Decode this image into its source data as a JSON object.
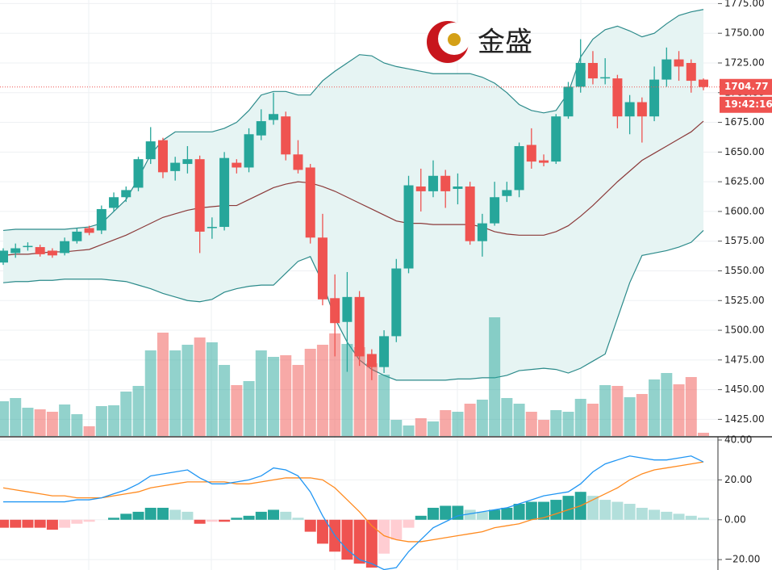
{
  "chart_data": {
    "type": "candlestick",
    "logo_text": "金盛",
    "time_label": "19:42:16",
    "colors": {
      "up": "#26a69a",
      "down": "#ef5350",
      "up_light": "#b2dfdb",
      "down_light": "#ffcdd2",
      "band_line": "#2b8a8a",
      "band_mid": "#8b3a3a",
      "band_fill": "#e6f4f3",
      "dif": "#2196f3",
      "dea": "#ff8a1f"
    },
    "open": [
      1557,
      1565,
      1570,
      1570,
      1567,
      1565,
      1575,
      1586,
      1584,
      1603,
      1612,
      1620,
      1644,
      1660,
      1634,
      1640,
      1644,
      1586,
      1587,
      1641,
      1637,
      1664,
      1677,
      1680,
      1648,
      1637,
      1578,
      1527,
      1507,
      1528,
      1480,
      1469,
      1495,
      1552,
      1621,
      1617,
      1630,
      1619,
      1621,
      1575,
      1590,
      1613,
      1618,
      1656,
      1643,
      1642,
      1680,
      1705,
      1725,
      1712,
      1712,
      1680,
      1692,
      1680,
      1711,
      1728,
      1725,
      1711
    ],
    "high": [
      1569,
      1573,
      1574,
      1572,
      1569,
      1578,
      1586,
      1588,
      1605,
      1616,
      1621,
      1646,
      1671,
      1662,
      1646,
      1655,
      1647,
      1595,
      1650,
      1644,
      1670,
      1686,
      1700,
      1684,
      1660,
      1640,
      1598,
      1547,
      1549,
      1533,
      1484,
      1500,
      1560,
      1630,
      1636,
      1643,
      1635,
      1632,
      1625,
      1598,
      1625,
      1625,
      1658,
      1670,
      1648,
      1682,
      1709,
      1745,
      1735,
      1729,
      1715,
      1698,
      1696,
      1722,
      1738,
      1735,
      1728,
      1712
    ],
    "low": [
      1555,
      1561,
      1567,
      1562,
      1561,
      1563,
      1573,
      1580,
      1581,
      1600,
      1608,
      1617,
      1640,
      1628,
      1626,
      1632,
      1565,
      1577,
      1584,
      1632,
      1633,
      1660,
      1673,
      1643,
      1632,
      1573,
      1521,
      1478,
      1465,
      1470,
      1458,
      1464,
      1490,
      1548,
      1600,
      1612,
      1603,
      1606,
      1572,
      1562,
      1588,
      1608,
      1612,
      1636,
      1638,
      1640,
      1678,
      1700,
      1707,
      1707,
      1670,
      1665,
      1658,
      1676,
      1705,
      1710,
      1700,
      1702
    ],
    "close": [
      1567,
      1569,
      1571,
      1564,
      1563,
      1575,
      1583,
      1582,
      1602,
      1612,
      1618,
      1644,
      1659,
      1633,
      1641,
      1644,
      1583,
      1587,
      1645,
      1637,
      1665,
      1676,
      1682,
      1648,
      1635,
      1578,
      1526,
      1506,
      1528,
      1478,
      1469,
      1495,
      1552,
      1622,
      1617,
      1630,
      1617,
      1621,
      1575,
      1590,
      1612,
      1618,
      1655,
      1642,
      1641,
      1680,
      1705,
      1725,
      1712,
      1713,
      1680,
      1692,
      1680,
      1711,
      1728,
      1722,
      1710,
      1704.77
    ],
    "volume": [
      43,
      47,
      35,
      33,
      30,
      39,
      27,
      12,
      37,
      38,
      55,
      62,
      106,
      128,
      106,
      113,
      122,
      116,
      88,
      63,
      68,
      106,
      98,
      100,
      88,
      108,
      113,
      127,
      114,
      110,
      90,
      76,
      20,
      13,
      22,
      18,
      32,
      30,
      40,
      45,
      147,
      47,
      40,
      30,
      20,
      32,
      30,
      46,
      40,
      63,
      62,
      48,
      52,
      70,
      78,
      64,
      73,
      4
    ],
    "upper": [
      1584,
      1585,
      1585,
      1585,
      1585,
      1585,
      1586,
      1587,
      1590,
      1600,
      1610,
      1628,
      1648,
      1660,
      1667,
      1667,
      1667,
      1667,
      1670,
      1675,
      1685,
      1698,
      1701,
      1701,
      1698,
      1698,
      1710,
      1718,
      1725,
      1732,
      1731,
      1725,
      1722,
      1720,
      1718,
      1716,
      1716,
      1716,
      1716,
      1713,
      1708,
      1700,
      1690,
      1685,
      1683,
      1685,
      1700,
      1730,
      1745,
      1753,
      1756,
      1752,
      1747,
      1750,
      1758,
      1765,
      1768,
      1770
    ],
    "middle": [
      1563,
      1564,
      1564,
      1565,
      1566,
      1566,
      1567,
      1568,
      1572,
      1576,
      1580,
      1585,
      1590,
      1595,
      1598,
      1601,
      1603,
      1604,
      1605,
      1605,
      1610,
      1615,
      1620,
      1623,
      1625,
      1624,
      1621,
      1617,
      1612,
      1607,
      1602,
      1597,
      1592,
      1590,
      1590,
      1589,
      1589,
      1589,
      1589,
      1587,
      1583,
      1581,
      1580,
      1580,
      1580,
      1583,
      1588,
      1596,
      1605,
      1615,
      1625,
      1634,
      1643,
      1649,
      1655,
      1661,
      1667,
      1676
    ],
    "lower": [
      1540,
      1541,
      1541,
      1542,
      1542,
      1543,
      1543,
      1543,
      1543,
      1542,
      1541,
      1538,
      1535,
      1531,
      1528,
      1525,
      1524,
      1526,
      1532,
      1535,
      1537,
      1538,
      1538,
      1548,
      1558,
      1562,
      1540,
      1510,
      1490,
      1475,
      1467,
      1462,
      1458,
      1458,
      1458,
      1458,
      1458,
      1459,
      1459,
      1460,
      1460,
      1462,
      1466,
      1467,
      1468,
      1467,
      1464,
      1468,
      1474,
      1480,
      1510,
      1540,
      1563,
      1565,
      1567,
      1570,
      1574,
      1584
    ],
    "ylim": [
      1411,
      1778
    ],
    "yticks": [
      {
        "value": 1425,
        "label": "1425.00"
      },
      {
        "value": 1450,
        "label": "1450.00"
      },
      {
        "value": 1475,
        "label": "1475.00"
      },
      {
        "value": 1500,
        "label": "1500.00"
      },
      {
        "value": 1525,
        "label": "1525.00"
      },
      {
        "value": 1550,
        "label": "1550.00"
      },
      {
        "value": 1575,
        "label": "1575.00"
      },
      {
        "value": 1600,
        "label": "1600.00"
      },
      {
        "value": 1625,
        "label": "1625.00"
      },
      {
        "value": 1650,
        "label": "1650.00"
      },
      {
        "value": 1675,
        "label": "1675.00"
      },
      {
        "value": 1700,
        "label": "1700.00"
      },
      {
        "value": 1725,
        "label": "1725.00"
      },
      {
        "value": 1750,
        "label": "1750.00"
      },
      {
        "value": 1775,
        "label": "1775.00"
      }
    ],
    "vlim": [
      0,
      150
    ],
    "macd": {
      "dif": [
        9,
        9,
        9,
        9,
        9,
        9,
        10,
        10,
        11,
        13,
        15,
        18,
        22,
        23,
        24,
        25,
        21,
        18,
        18,
        19,
        20,
        22,
        26,
        25,
        22,
        14,
        2,
        -8,
        -15,
        -20,
        -22,
        -25,
        -24,
        -16,
        -10,
        -4,
        -1,
        2,
        3,
        4,
        5,
        6,
        8,
        10,
        12,
        13,
        14,
        18,
        24,
        28,
        30,
        32,
        31,
        30,
        30,
        31,
        32,
        29
      ],
      "dea": [
        16,
        15,
        14,
        13,
        12,
        12,
        11,
        11,
        11,
        12,
        13,
        14,
        16,
        17,
        18,
        19,
        19,
        19,
        19,
        18,
        18,
        19,
        20,
        21,
        21,
        21,
        20,
        16,
        10,
        4,
        -3,
        -8,
        -10,
        -11,
        -11,
        -10,
        -9,
        -8,
        -7,
        -6,
        -4,
        -3,
        -2,
        0,
        1,
        3,
        5,
        7,
        10,
        13,
        16,
        20,
        23,
        25,
        26,
        27,
        28,
        29
      ],
      "hist": [
        -4,
        -4,
        -4,
        -4,
        -5,
        -4,
        -2,
        -1,
        0,
        1,
        3,
        4,
        6,
        6,
        5,
        4,
        -2,
        -1,
        -1,
        1,
        2,
        4,
        5,
        4,
        1,
        -6,
        -12,
        -16,
        -20,
        -22,
        -24,
        -17,
        -10,
        -4,
        2,
        6,
        7,
        7,
        5,
        4,
        5,
        6,
        8,
        9,
        9,
        10,
        12,
        14,
        12,
        10,
        9,
        8,
        6,
        5,
        4,
        3,
        2,
        1
      ],
      "ylim": [
        -25,
        40
      ],
      "yticks": [
        {
          "value": -20,
          "label": "−20.00"
        },
        {
          "value": 0,
          "label": "0.00"
        },
        {
          "value": 20,
          "label": "20.00"
        },
        {
          "value": 40,
          "label": "40.00"
        }
      ]
    }
  }
}
